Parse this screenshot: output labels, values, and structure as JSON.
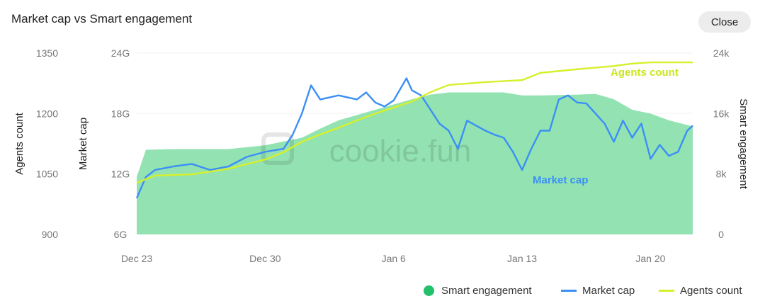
{
  "title": "Market cap vs Smart engagement",
  "close_label": "Close",
  "watermark": "cookie.fun",
  "colors": {
    "engagement": "#93e2b2",
    "engagement_legend": "#22c06a",
    "market_cap": "#3b8ff5",
    "agents": "#d6f02c"
  },
  "chart_data": {
    "type": "area+line",
    "title": "Market cap vs Smart engagement",
    "x_unit": "days since Dec 23",
    "x_ticks": [
      {
        "x": 0,
        "label": "Dec 23"
      },
      {
        "x": 7,
        "label": "Dec 30"
      },
      {
        "x": 14,
        "label": "Jan 6"
      },
      {
        "x": 21,
        "label": "Jan 13"
      },
      {
        "x": 28,
        "label": "Jan 20"
      }
    ],
    "xlim": [
      0,
      30.3
    ],
    "axes": {
      "agents": {
        "label": "Agents count",
        "ylim": [
          900,
          1350
        ],
        "ticks": [
          "1350",
          "1200",
          "1050",
          "900"
        ],
        "tick_values": [
          1350,
          1200,
          1050,
          900
        ]
      },
      "market_cap": {
        "label": "Market cap",
        "ylim": [
          6,
          24
        ],
        "ticks": [
          "24G",
          "18G",
          "12G",
          "6G"
        ],
        "tick_values": [
          24,
          18,
          12,
          6
        ]
      },
      "engagement": {
        "label": "Smart engagement",
        "ylim": [
          0,
          24
        ],
        "ticks": [
          "24k",
          "16k",
          "8k",
          "0"
        ],
        "tick_values": [
          24,
          16,
          8,
          0
        ]
      }
    },
    "series": [
      {
        "name": "Smart engagement",
        "type": "area",
        "axis": "engagement",
        "x": [
          0,
          0.5,
          2,
          5,
          7,
          9,
          10,
          11,
          12,
          13,
          14,
          15,
          16,
          17,
          19,
          20,
          21,
          22,
          24,
          25,
          26,
          27,
          28,
          29,
          30.3
        ],
        "y": [
          7.6,
          11.2,
          11.3,
          11.3,
          11.8,
          12.8,
          14,
          15.1,
          15.8,
          16.5,
          17.2,
          17.9,
          18.5,
          18.8,
          18.8,
          18.8,
          18.4,
          18.4,
          18.5,
          18.6,
          17.9,
          16.5,
          16.0,
          15.1,
          14.3
        ]
      },
      {
        "name": "Market cap",
        "type": "line",
        "axis": "market_cap",
        "x": [
          0,
          0.5,
          1,
          2,
          3,
          4,
          5,
          6,
          7,
          8,
          8.5,
          9,
          9.5,
          10,
          11,
          12,
          12.5,
          13,
          13.5,
          14,
          14.7,
          15,
          15.5,
          16,
          16.5,
          17,
          17.5,
          18,
          19,
          19.5,
          20,
          20.5,
          21,
          21.5,
          22,
          22.5,
          23,
          23.5,
          24,
          24.5,
          25,
          25.5,
          26,
          26.5,
          27,
          27.5,
          28,
          28.5,
          29,
          29.5,
          30,
          30.3
        ],
        "y": [
          9.6,
          11.7,
          12.4,
          12.75,
          13.0,
          12.4,
          12.75,
          13.7,
          14.2,
          14.5,
          15.9,
          18.0,
          20.8,
          19.4,
          19.8,
          19.4,
          20.1,
          19.1,
          18.7,
          19.3,
          21.5,
          20.3,
          19.8,
          18.4,
          17.0,
          16.3,
          14.5,
          17.3,
          16.3,
          15.9,
          15.6,
          14.2,
          12.4,
          14.5,
          16.3,
          16.3,
          19.4,
          19.8,
          19.1,
          19.0,
          18.0,
          17.0,
          15.2,
          17.3,
          15.6,
          17.0,
          13.5,
          14.9,
          13.8,
          14.2,
          16.3,
          16.8
        ]
      },
      {
        "name": "Agents count",
        "type": "line",
        "axis": "agents",
        "x": [
          0,
          1,
          3,
          5,
          7,
          8,
          9,
          10,
          11,
          12,
          13,
          14,
          15,
          16,
          17,
          19,
          21,
          22,
          24,
          26,
          27,
          28,
          30.3
        ],
        "y": [
          1028,
          1046,
          1049,
          1063,
          1086,
          1104,
          1130,
          1148,
          1165,
          1183,
          1200,
          1215,
          1230,
          1253,
          1271,
          1278,
          1283,
          1301,
          1310,
          1318,
          1324,
          1327,
          1327
        ]
      }
    ],
    "annotations": [
      "Agents count",
      "Market cap"
    ],
    "legend": [
      "Smart engagement",
      "Market cap",
      "Agents count"
    ],
    "legend_position": "bottom-right"
  }
}
